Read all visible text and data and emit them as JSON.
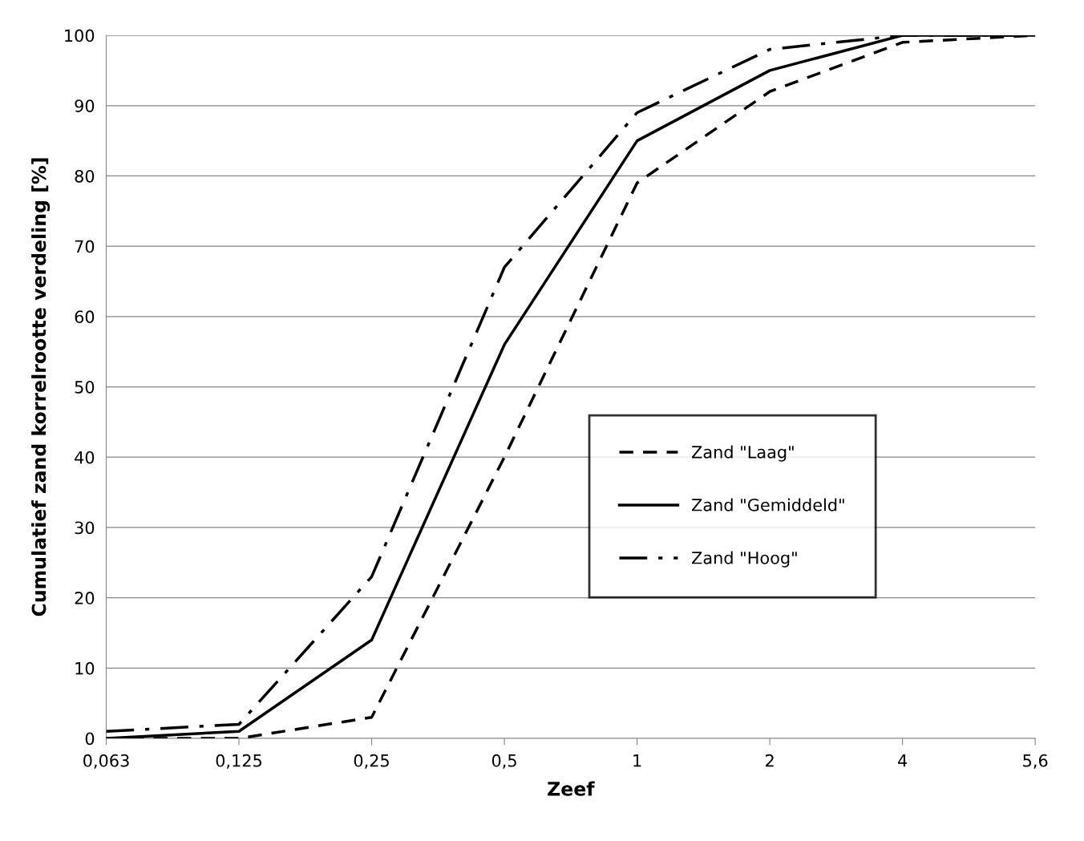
{
  "chart_data": {
    "type": "line",
    "xlabel": "Zeef",
    "ylabel": "Cumulatief zand korrelrootte verdeling [%]",
    "categories": [
      "0,063",
      "0,125",
      "0,25",
      "0,5",
      "1",
      "2",
      "4",
      "5,6"
    ],
    "series": [
      {
        "name": "Zand \"Laag\"",
        "color": "#000000",
        "line_style": "dashed",
        "values": [
          0,
          0,
          3,
          40,
          79,
          92,
          99,
          100
        ]
      },
      {
        "name": "Zand \"Gemiddeld\"",
        "color": "#000000",
        "line_style": "solid",
        "values": [
          0,
          1,
          14,
          56,
          85,
          95,
          100,
          100
        ]
      },
      {
        "name": "Zand \"Hoog\"",
        "color": "#000000",
        "line_style": "dashdot",
        "values": [
          1,
          2,
          23,
          67,
          89,
          98,
          100,
          100
        ]
      }
    ],
    "ylim": [
      0,
      100
    ],
    "yticks": [
      0,
      10,
      20,
      30,
      40,
      50,
      60,
      70,
      80,
      90,
      100
    ],
    "grid": "y",
    "legend": "right",
    "marker": "none"
  }
}
